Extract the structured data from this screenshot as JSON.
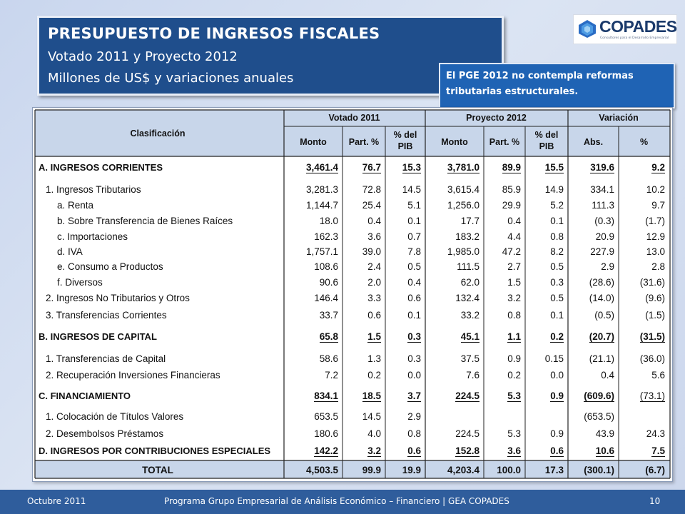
{
  "title": {
    "main": "PRESUPUESTO DE INGRESOS FISCALES",
    "line2": "Votado 2011 y Proyecto 2012",
    "line3": "Millones de US$ y variaciones anuales"
  },
  "logo": {
    "text": "COPADES",
    "tagline": "Consultores para el Desarrollo Empresarial"
  },
  "note": "El PGE 2012 no contempla reformas tributarias estructurales.",
  "table": {
    "header": {
      "clasificacion": "Clasificación",
      "group1": "Votado 2011",
      "group2": "Proyecto 2012",
      "group3": "Variación",
      "cols": [
        "Monto",
        "Part. %",
        "% del PIB",
        "Monto",
        "Part. %",
        "% del PIB",
        "Abs.",
        "%"
      ]
    },
    "rows": [
      {
        "label": "A. INGRESOS CORRIENTES",
        "level": 0,
        "bold": true,
        "values": [
          "3,461.4",
          "76.7",
          "15.3",
          "3,781.0",
          "89.9",
          "15.5",
          "319.6",
          "9.2"
        ]
      },
      {
        "label": "1. Ingresos Tributarios",
        "level": 1,
        "bold": false,
        "values": [
          "3,281.3",
          "72.8",
          "14.5",
          "3,615.4",
          "85.9",
          "14.9",
          "334.1",
          "10.2"
        ]
      },
      {
        "label": "a. Renta",
        "level": 2,
        "bold": false,
        "values": [
          "1,144.7",
          "25.4",
          "5.1",
          "1,256.0",
          "29.9",
          "5.2",
          "111.3",
          "9.7"
        ]
      },
      {
        "label": "b. Sobre Transferencia de Bienes Raíces",
        "level": 2,
        "bold": false,
        "values": [
          "18.0",
          "0.4",
          "0.1",
          "17.7",
          "0.4",
          "0.1",
          "(0.3)",
          "(1.7)"
        ]
      },
      {
        "label": "c. Importaciones",
        "level": 2,
        "bold": false,
        "values": [
          "162.3",
          "3.6",
          "0.7",
          "183.2",
          "4.4",
          "0.8",
          "20.9",
          "12.9"
        ]
      },
      {
        "label": "d. IVA",
        "level": 2,
        "bold": false,
        "values": [
          "1,757.1",
          "39.0",
          "7.8",
          "1,985.0",
          "47.2",
          "8.2",
          "227.9",
          "13.0"
        ]
      },
      {
        "label": "e. Consumo a Productos",
        "level": 2,
        "bold": false,
        "values": [
          "108.6",
          "2.4",
          "0.5",
          "111.5",
          "2.7",
          "0.5",
          "2.9",
          "2.8"
        ]
      },
      {
        "label": "f. Diversos",
        "level": 2,
        "bold": false,
        "values": [
          "90.6",
          "2.0",
          "0.4",
          "62.0",
          "1.5",
          "0.3",
          "(28.6)",
          "(31.6)"
        ]
      },
      {
        "label": "2. Ingresos No Tributarios y Otros",
        "level": 1,
        "bold": false,
        "values": [
          "146.4",
          "3.3",
          "0.6",
          "132.4",
          "3.2",
          "0.5",
          "(14.0)",
          "(9.6)"
        ]
      },
      {
        "label": "3. Transferencias Corrientes",
        "level": 1,
        "bold": false,
        "values": [
          "33.7",
          "0.6",
          "0.1",
          "33.2",
          "0.8",
          "0.1",
          "(0.5)",
          "(1.5)"
        ]
      },
      {
        "label": "B. INGRESOS DE CAPITAL",
        "level": 0,
        "bold": true,
        "values": [
          "65.8",
          "1.5",
          "0.3",
          "45.1",
          "1.1",
          "0.2",
          "(20.7)",
          "(31.5)"
        ]
      },
      {
        "label": "1. Transferencias de Capital",
        "level": 1,
        "bold": false,
        "values": [
          "58.6",
          "1.3",
          "0.3",
          "37.5",
          "0.9",
          "0.15",
          "(21.1)",
          "(36.0)"
        ]
      },
      {
        "label": "2. Recuperación Inversiones Financieras",
        "level": 1,
        "bold": false,
        "values": [
          "7.2",
          "0.2",
          "0.0",
          "7.6",
          "0.2",
          "0.0",
          "0.4",
          "5.6"
        ]
      },
      {
        "label": "C. FINANCIAMIENTO",
        "level": 0,
        "bold": true,
        "values": [
          "834.1",
          "18.5",
          "3.7",
          "224.5",
          "5.3",
          "0.9",
          "(609.6)",
          "(73.1)"
        ]
      },
      {
        "label": "1. Colocación de Títulos Valores",
        "level": 1,
        "bold": false,
        "values": [
          "653.5",
          "14.5",
          "2.9",
          "",
          "",
          "",
          "(653.5)",
          ""
        ]
      },
      {
        "label": "2. Desembolsos Préstamos",
        "level": 1,
        "bold": false,
        "values": [
          "180.6",
          "4.0",
          "0.8",
          "224.5",
          "5.3",
          "0.9",
          "43.9",
          "24.3"
        ]
      },
      {
        "label": "D. INGRESOS POR CONTRIBUCIONES ESPECIALES",
        "level": 0,
        "bold": true,
        "values": [
          "142.2",
          "3.2",
          "0.6",
          "152.8",
          "3.6",
          "0.6",
          "10.6",
          "7.5"
        ]
      }
    ],
    "total": {
      "label": "TOTAL",
      "values": [
        "4,503.5",
        "99.9",
        "19.9",
        "4,203.4",
        "100.0",
        "17.3",
        "(300.1)",
        "(6.7)"
      ]
    }
  },
  "footer": {
    "left": "Octubre 2011",
    "center": "Programa Grupo Empresarial de Análisis Económico – Financiero | GEA COPADES",
    "page": "10"
  },
  "colors": {
    "header_fill": "#c8d6ea",
    "title_fill": "#1f4e8c",
    "note_fill": "#1f63b4",
    "footer_fill": "#2f5d9c"
  }
}
